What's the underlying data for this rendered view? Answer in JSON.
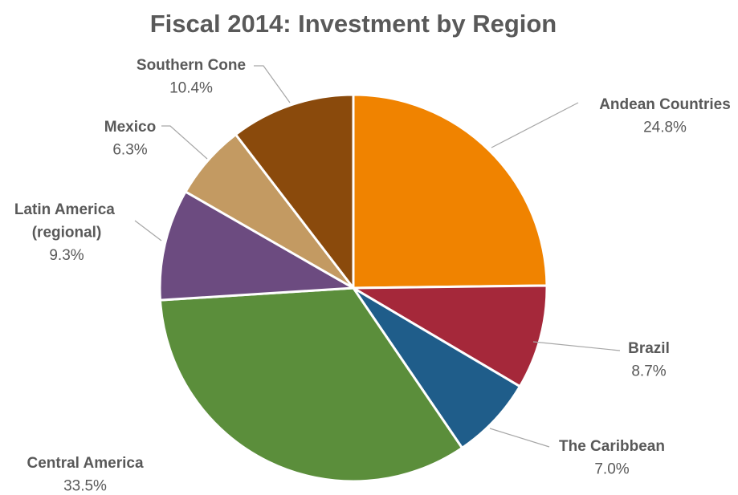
{
  "chart_data": {
    "type": "pie",
    "title": "Fiscal 2014: Investment by Region",
    "categories": [
      "Andean Countries",
      "Brazil",
      "The Caribbean",
      "Central America",
      "Latin America (regional)",
      "Mexico",
      "Southern Cone"
    ],
    "values": [
      24.8,
      8.7,
      7.0,
      33.5,
      9.3,
      6.3,
      10.4
    ],
    "value_labels": [
      "24.8%",
      "8.7%",
      "7.0%",
      "33.5%",
      "9.3%",
      "6.3%",
      "10.4%"
    ],
    "colors": [
      "#F08300",
      "#A5283A",
      "#1F5D8A",
      "#5B8E3B",
      "#6C4B80",
      "#C39A62",
      "#8A4A0C"
    ]
  }
}
